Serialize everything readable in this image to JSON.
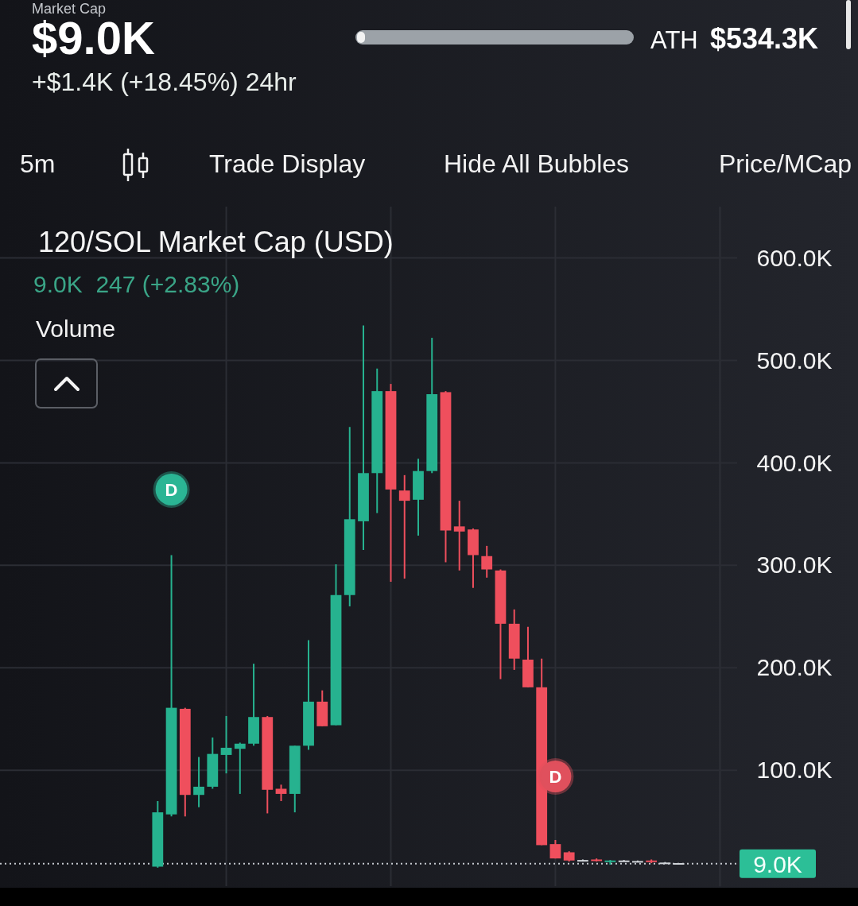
{
  "chart_data": {
    "type": "candlestick",
    "title": "120/SOL Market Cap (USD)",
    "subtitle": "9.0K  247 (+2.83%)",
    "annotations": [
      "Market Cap",
      "$9.0K",
      "+$1.4K (+18.45%) 24hr",
      "ATH",
      "$534.3K",
      "5m",
      "Trade Display",
      "Hide All Bubbles",
      "Price/MCap",
      "Volume",
      {
        "text": "D",
        "y": 374000
      },
      {
        "text": "D",
        "y": 94000
      }
    ],
    "categories": [
      null,
      null,
      null,
      null,
      null,
      null,
      null,
      null,
      null,
      null,
      null,
      null,
      null,
      null,
      null,
      null,
      null,
      null,
      null,
      null,
      null,
      null,
      null,
      null,
      null,
      null,
      null,
      null,
      null,
      null,
      null,
      null,
      null,
      null,
      null,
      null,
      null,
      null,
      null,
      null,
      null,
      null,
      null,
      null,
      null,
      null,
      null,
      null,
      null,
      null,
      null,
      null,
      null
    ],
    "ohlc": [
      null,
      null,
      null,
      null,
      null,
      null,
      null,
      null,
      null,
      null,
      null,
      [
        6000,
        70000,
        5000,
        59000
      ],
      [
        57000,
        310000,
        55000,
        161000
      ],
      [
        160000,
        161000,
        55000,
        76000
      ],
      [
        76000,
        113000,
        64000,
        84000
      ],
      [
        84000,
        132000,
        82000,
        116000
      ],
      [
        115000,
        153000,
        97000,
        122000
      ],
      [
        121000,
        127000,
        77000,
        126000
      ],
      [
        126000,
        204000,
        124000,
        152000
      ],
      [
        152000,
        153000,
        58000,
        81000
      ],
      [
        82000,
        86000,
        70000,
        77000
      ],
      [
        77000,
        124000,
        59000,
        124000
      ],
      [
        124000,
        227000,
        120000,
        167000
      ],
      [
        167000,
        178000,
        143000,
        143000
      ],
      [
        144000,
        301000,
        144000,
        271000
      ],
      [
        271000,
        435000,
        260000,
        345000
      ],
      [
        343000,
        534000,
        315000,
        390000
      ],
      [
        390000,
        492000,
        351000,
        470000
      ],
      [
        470000,
        477000,
        284000,
        374000
      ],
      [
        373000,
        388000,
        287000,
        363000
      ],
      [
        364000,
        404000,
        329000,
        392000
      ],
      [
        392000,
        522000,
        390000,
        467000
      ],
      [
        469000,
        470000,
        303000,
        334000
      ],
      [
        338000,
        363000,
        295000,
        333000
      ],
      [
        335000,
        336000,
        278000,
        310000
      ],
      [
        309000,
        319000,
        288000,
        296000
      ],
      [
        295000,
        296000,
        189000,
        243000
      ],
      [
        243000,
        257000,
        198000,
        209000
      ],
      [
        208000,
        240000,
        181000,
        181000
      ],
      [
        181000,
        209000,
        27000,
        27000
      ],
      [
        28000,
        32000,
        14000,
        14000
      ],
      [
        20000,
        21000,
        11000,
        12000
      ],
      [
        12000,
        13000,
        11000,
        12500
      ],
      [
        13000,
        14000,
        11000,
        11500
      ],
      [
        11000,
        12500,
        8000,
        12000
      ],
      [
        12000,
        12500,
        11000,
        11500
      ],
      [
        11500,
        12000,
        10500,
        11000
      ],
      [
        12000,
        13000,
        9500,
        10500
      ],
      [
        10000,
        10500,
        9000,
        9500
      ],
      [
        9500,
        9500,
        8500,
        9000
      ],
      null,
      null,
      null
    ],
    "colors": [
      null,
      null,
      null,
      null,
      null,
      null,
      null,
      null,
      null,
      null,
      null,
      "#26b28f",
      "#26b28f",
      "#ef4f5d",
      "#26b28f",
      "#26b28f",
      "#26b28f",
      "#26b28f",
      "#26b28f",
      "#ef4f5d",
      "#ef4f5d",
      "#26b28f",
      "#26b28f",
      "#ef4f5d",
      "#26b28f",
      "#26b28f",
      "#26b28f",
      "#26b28f",
      "#ef4f5d",
      "#ef4f5d",
      "#26b28f",
      "#26b28f",
      "#ef4f5d",
      "#ef4f5d",
      "#ef4f5d",
      "#ef4f5d",
      "#ef4f5d",
      "#ef4f5d",
      "#ef4f5d",
      "#ef4f5d",
      "#ef4f5d",
      "#ef4f5d",
      "#cfd3d8",
      "#ef4f5d",
      "#26b28f",
      "#cfd3d8",
      "#cfd3d8",
      "#ef4f5d",
      "#cfd3d8",
      "#cfd3d8",
      null,
      null,
      null
    ],
    "ylim": [
      -13000,
      650000
    ],
    "yticks": [
      {
        "value": 100000,
        "label": "100.0K"
      },
      {
        "value": 200000,
        "label": "200.0K"
      },
      {
        "value": 300000,
        "label": "300.0K"
      },
      {
        "value": 400000,
        "label": "400.0K"
      },
      {
        "value": 500000,
        "label": "500.0K"
      },
      {
        "value": 600000,
        "label": "600.0K"
      }
    ],
    "ref_lines": [
      {
        "axis": "y",
        "value": 9000,
        "label": "9.0K",
        "color": "#c4c8ce",
        "line_style": "dotted"
      }
    ],
    "grid": true,
    "tick_labels": "y"
  }
}
